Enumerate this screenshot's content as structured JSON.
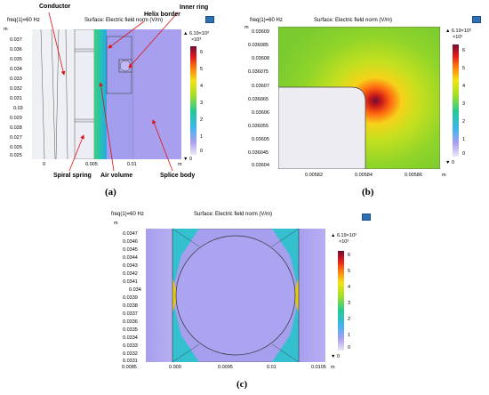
{
  "chart_data": [
    {
      "id": "a",
      "type": "heatmap",
      "caption": "(a)",
      "title_left": "freq(1)=60 Hz",
      "title": "Surface: Electric field norm (V/m)",
      "unit_label": "m",
      "colorbar": {
        "max_label": "▲ 6.19×10³",
        "multiplier": "×10³",
        "min_label": "▼ 0",
        "ticks": [
          "6",
          "5",
          "4",
          "3",
          "2",
          "1",
          "0"
        ]
      },
      "y_ticks": [
        "0.037",
        "0.036",
        "0.035",
        "0.034",
        "0.033",
        "0.032",
        "0.031",
        "0.03",
        "0.029",
        "0.028",
        "0.027",
        "0.026",
        "0.025"
      ],
      "x_ticks": [
        "0",
        "0.005",
        "0.01"
      ],
      "annotations": [
        "Conductor",
        "Helix border",
        "Inner ring",
        "Air volume",
        "Spiral spring",
        "Splice body"
      ]
    },
    {
      "id": "b",
      "type": "heatmap",
      "caption": "(b)",
      "title_left": "freq(1)=60 Hz",
      "title": "Surface: Electric field norm (V/m)",
      "unit_label": "m",
      "colorbar": {
        "max_label": "▲ 6.19×10³",
        "multiplier": "×10³",
        "min_label": "▼ 0",
        "ticks": [
          "6",
          "5",
          "4",
          "3",
          "2",
          "1",
          "0"
        ]
      },
      "y_ticks": [
        "0.03609",
        "0.036085",
        "0.03608",
        "0.036075",
        "0.03607",
        "0.036065",
        "0.03606",
        "0.036055",
        "0.03605",
        "0.036045",
        "0.03604"
      ],
      "x_ticks": [
        "0.00582",
        "0.00584",
        "0.00586"
      ]
    },
    {
      "id": "c",
      "type": "heatmap",
      "caption": "(c)",
      "title_left": "freq(1)=60 Hz",
      "title": "Surface: Electric field norm (V/m)",
      "unit_label": "m",
      "colorbar": {
        "max_label": "▲ 6.19×10³",
        "multiplier": "×10³",
        "min_label": "▼ 0",
        "ticks": [
          "6",
          "5",
          "4",
          "3",
          "2",
          "1",
          "0"
        ]
      },
      "y_ticks": [
        "0.0347",
        "0.0346",
        "0.0345",
        "0.0344",
        "0.0343",
        "0.0342",
        "0.0341",
        "0.034",
        "0.0339",
        "0.0338",
        "0.0337",
        "0.0336",
        "0.0335",
        "0.0334",
        "0.0333",
        "0.0332",
        "0.0331"
      ],
      "x_ticks": [
        "0.0085",
        "0.009",
        "0.0095",
        "0.01",
        "0.0105"
      ]
    }
  ]
}
